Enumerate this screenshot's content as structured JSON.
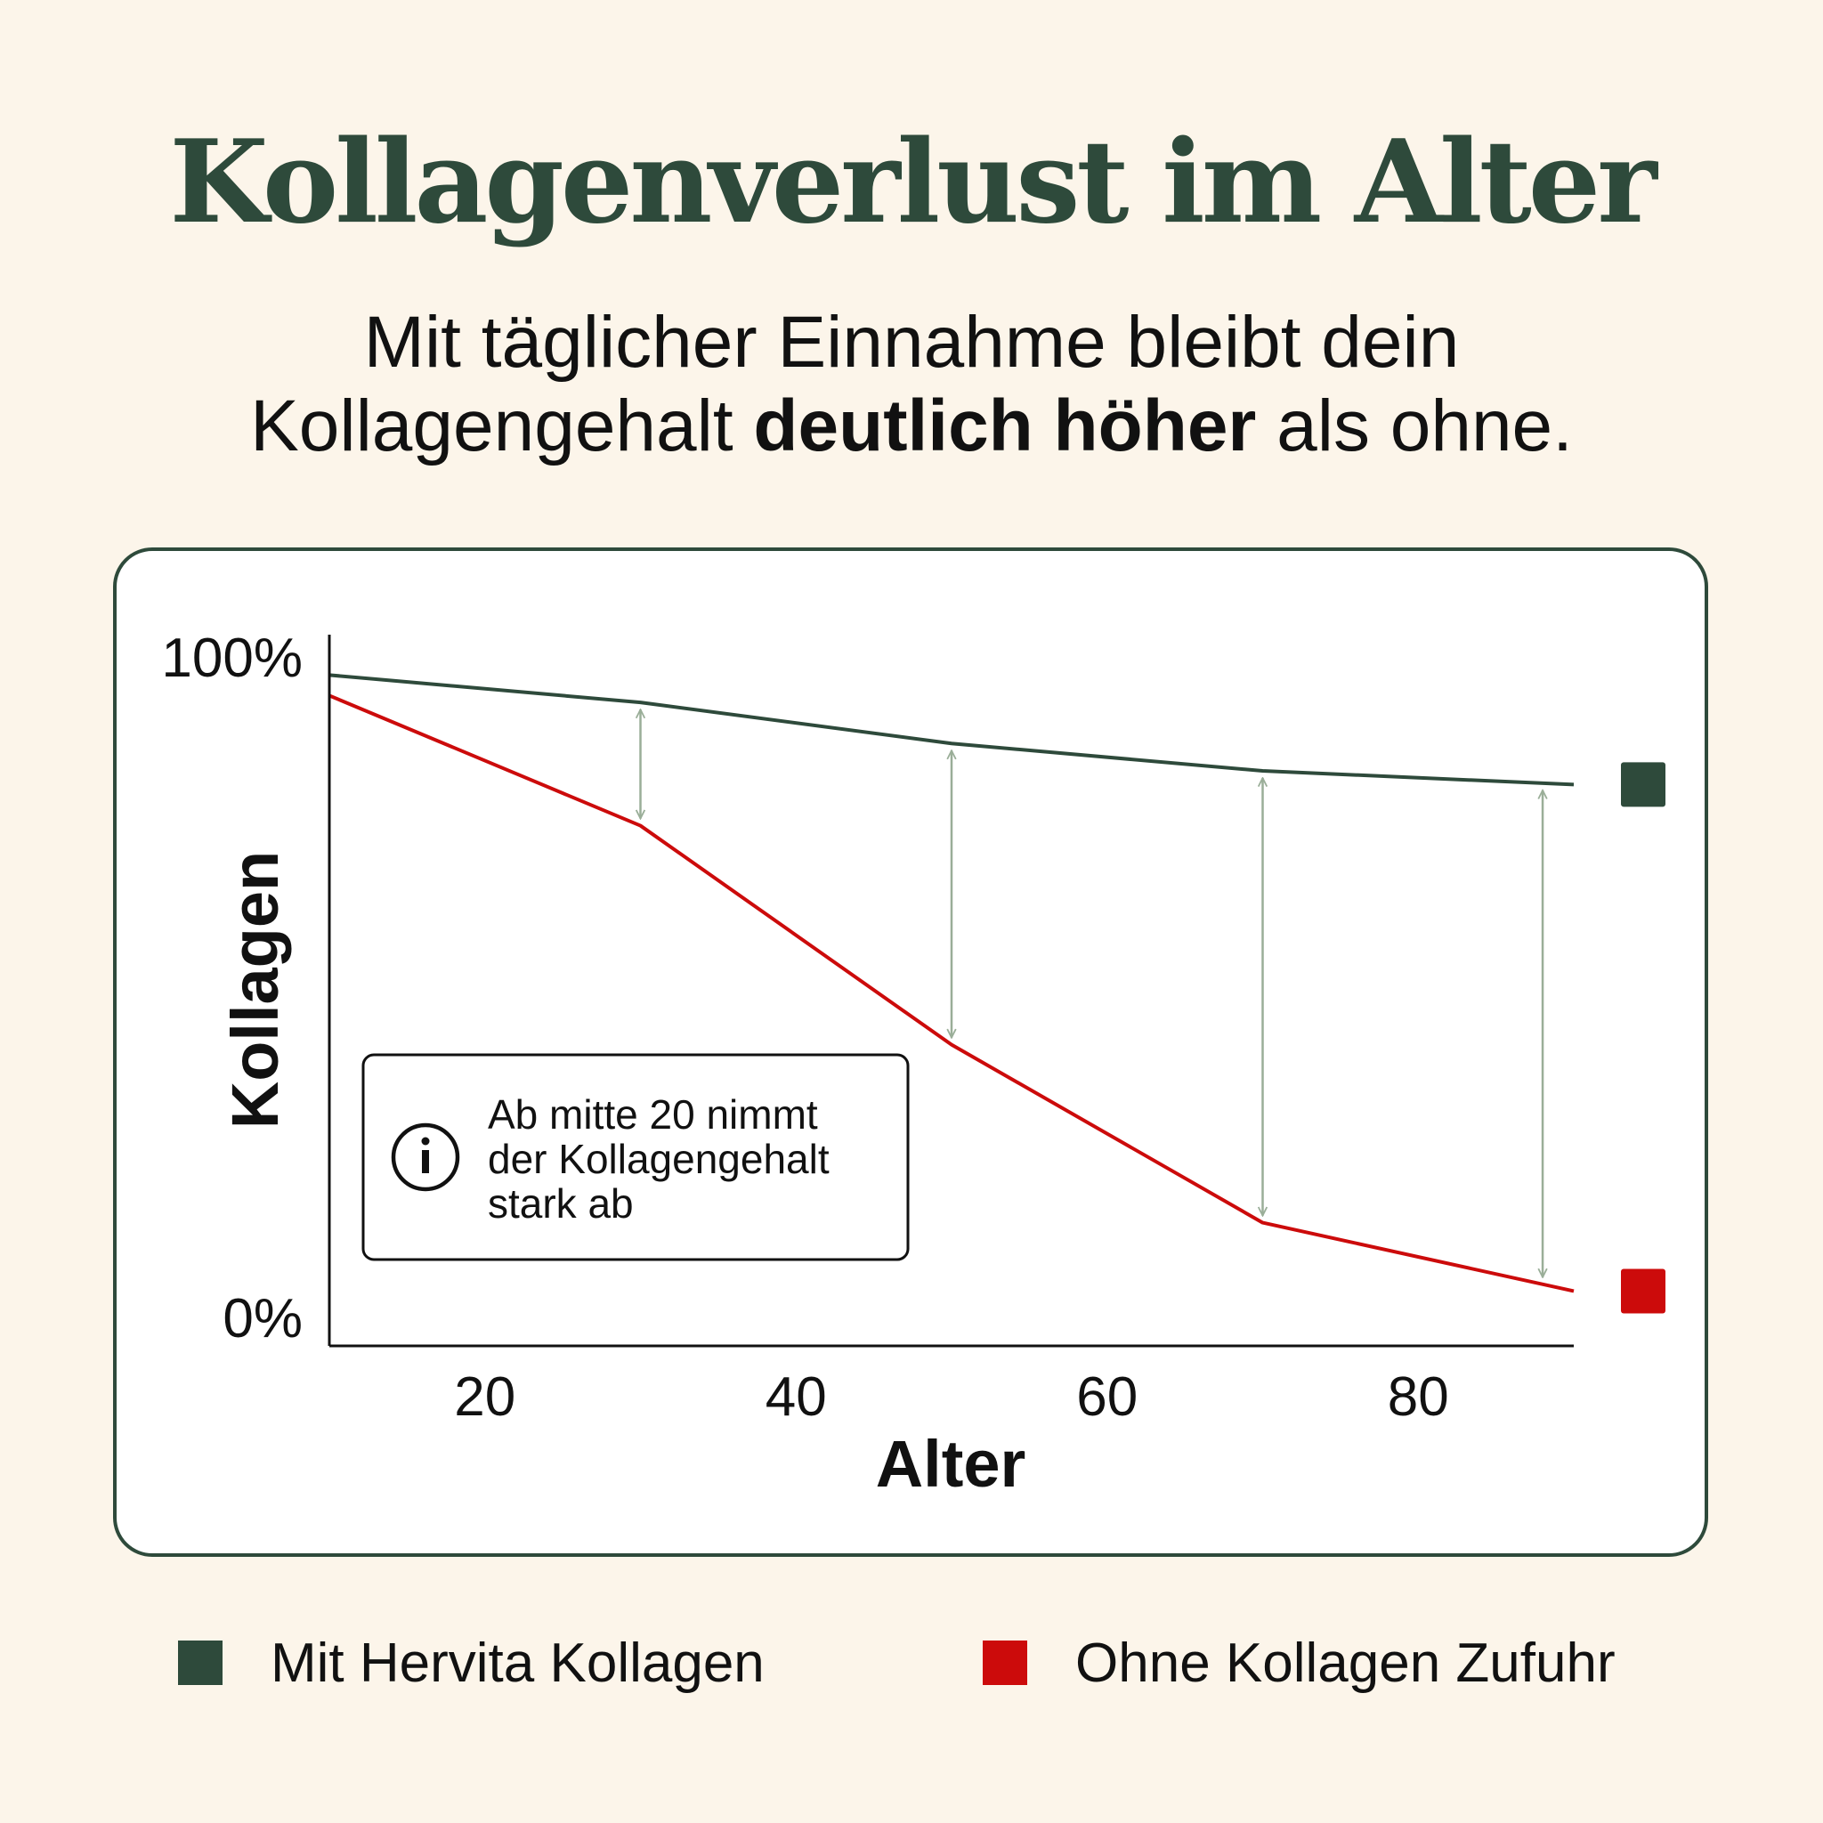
{
  "header": {
    "title": "Kollagenverlust im Alter",
    "subtitle_line1": "Mit täglicher Einnahme bleibt dein",
    "subtitle_line2_pre": "Kollagengehalt ",
    "subtitle_line2_bold": "deutlich höher",
    "subtitle_line2_post": " als ohne."
  },
  "colors": {
    "accent_green": "#2e4a3b",
    "accent_red": "#cc0b0b",
    "arrow": "#9aae98",
    "background": "#fcf5ea"
  },
  "chart_data": {
    "type": "line",
    "xlabel": "Alter",
    "ylabel": "Kollagen",
    "xlim": [
      10,
      90
    ],
    "ylim": [
      0,
      100
    ],
    "x_ticks": [
      20,
      40,
      60,
      80
    ],
    "y_tick_labels": [
      "0%",
      "100%"
    ],
    "grid": false,
    "series": [
      {
        "name": "Mit Hervita Kollagen",
        "color": "#2e4a3b",
        "x": [
          10,
          30,
          50,
          70,
          90
        ],
        "y": [
          98,
          94,
          88,
          84,
          82
        ]
      },
      {
        "name": "Ohne Kollagen Zufuhr",
        "color": "#cc0b0b",
        "x": [
          10,
          30,
          50,
          70,
          90
        ],
        "y": [
          95,
          76,
          44,
          18,
          8
        ]
      }
    ],
    "gap_arrows_x": [
      30,
      50,
      70,
      88
    ],
    "annotation": {
      "icon": "info-icon",
      "lines": [
        "Ab mitte 20 nimmt",
        "der Kollagengehalt",
        "stark ab"
      ]
    }
  },
  "legend": [
    {
      "label": "Mit Hervita Kollagen",
      "color": "#2e4a3b"
    },
    {
      "label": "Ohne Kollagen Zufuhr",
      "color": "#cc0b0b"
    }
  ]
}
